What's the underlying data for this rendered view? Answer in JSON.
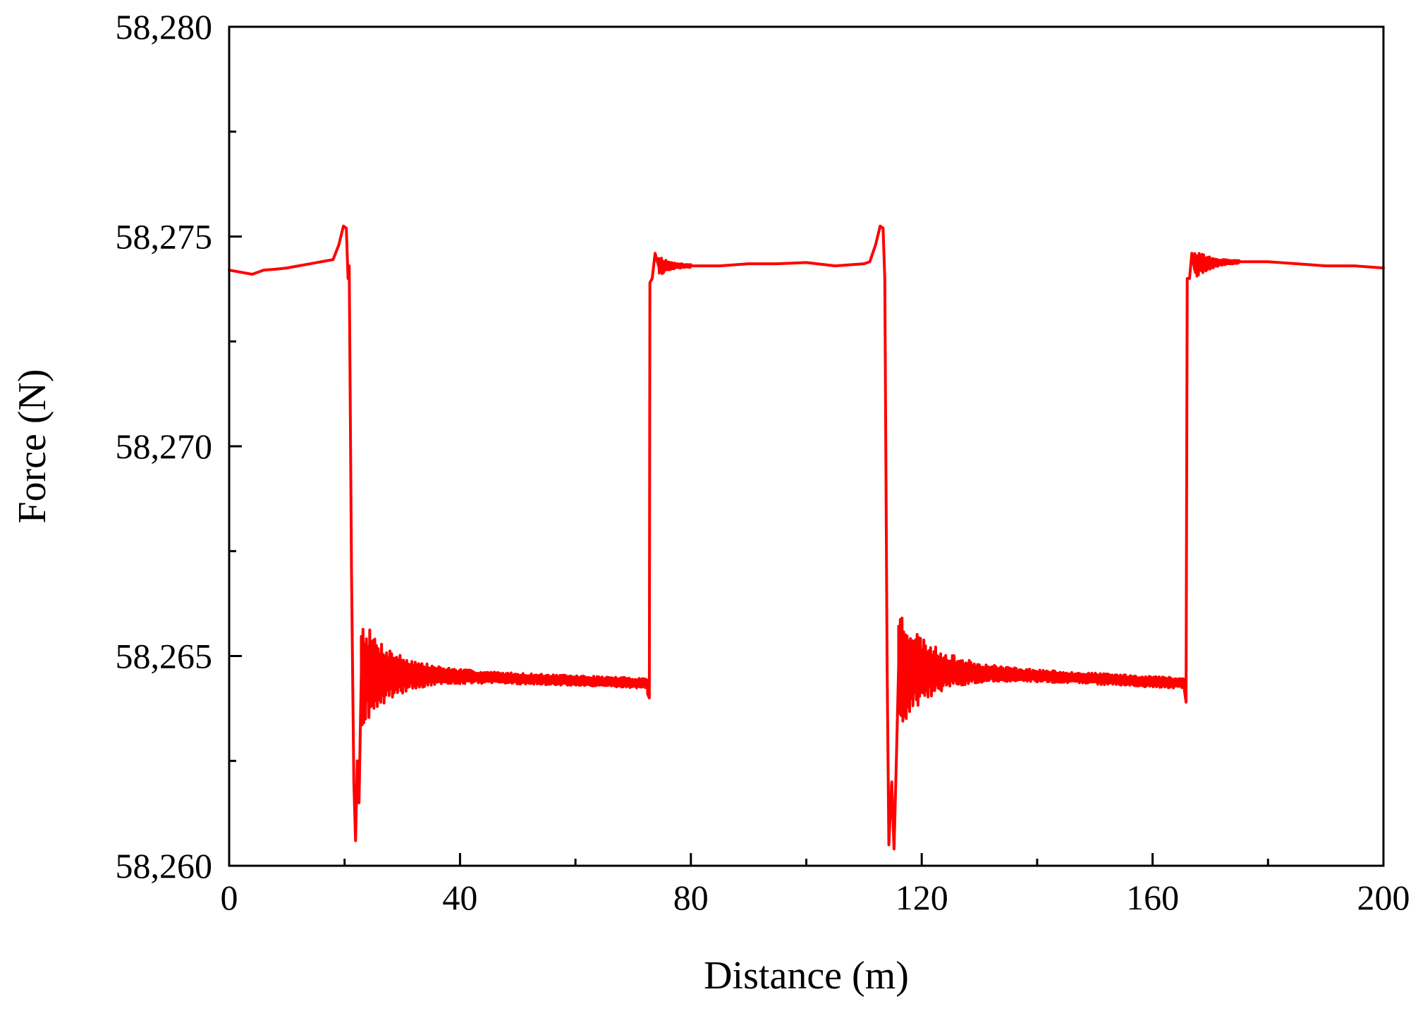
{
  "chart_data": {
    "type": "line",
    "title": "",
    "xlabel": "Distance (m)",
    "ylabel": "Force (N)",
    "xlim": [
      0,
      200
    ],
    "ylim": [
      58260,
      58280
    ],
    "x_ticks": [
      0,
      40,
      80,
      120,
      160,
      200
    ],
    "x_tick_labels": [
      "0",
      "40",
      "80",
      "120",
      "160",
      "200"
    ],
    "x_minor_step": 20,
    "y_ticks": [
      58260,
      58265,
      58270,
      58275,
      58280
    ],
    "y_tick_labels": [
      "58,260",
      "58,265",
      "58,270",
      "58,275",
      "58,280"
    ],
    "y_minor_step": 2.5,
    "grid": false,
    "legend": "none",
    "series": [
      {
        "color": "#ff0000",
        "segments": [
          {
            "kind": "points",
            "points": [
              [
                0,
                58274.2
              ],
              [
                2,
                58274.15
              ],
              [
                4,
                58274.1
              ],
              [
                6,
                58274.2
              ],
              [
                8,
                58274.22
              ],
              [
                10,
                58274.25
              ],
              [
                12,
                58274.3
              ],
              [
                14,
                58274.35
              ],
              [
                16,
                58274.4
              ],
              [
                18,
                58274.45
              ],
              [
                19,
                58274.8
              ],
              [
                19.8,
                58275.25
              ],
              [
                20.3,
                58275.2
              ],
              [
                20.6,
                58274.0
              ],
              [
                20.8,
                58274.3
              ],
              [
                21.2,
                58267.0
              ],
              [
                21.6,
                58262.0
              ],
              [
                21.9,
                58260.6
              ],
              [
                22.2,
                58262.5
              ],
              [
                22.5,
                58261.5
              ],
              [
                22.9,
                58264.6
              ]
            ]
          },
          {
            "kind": "oscillation",
            "x_start": 22.9,
            "x_end": 72.5,
            "base_start": 58264.6,
            "base_end": 58264.35,
            "amp0": 1.2,
            "decay": 9,
            "cycles": 170,
            "floor": 0.12,
            "seed": 7
          },
          {
            "kind": "points",
            "points": [
              [
                72.5,
                58264.1
              ],
              [
                72.8,
                58264.0
              ],
              [
                72.9,
                58273.9
              ],
              [
                73.3,
                58274.0
              ],
              [
                73.8,
                58274.6
              ],
              [
                74.4,
                58274.3
              ]
            ]
          },
          {
            "kind": "oscillation",
            "x_start": 74.4,
            "x_end": 80,
            "base_start": 58274.3,
            "base_end": 58274.3,
            "amp0": 0.25,
            "decay": 3,
            "cycles": 22,
            "floor": 0.02,
            "seed": 11
          },
          {
            "kind": "points",
            "points": [
              [
                80,
                58274.3
              ],
              [
                85,
                58274.3
              ],
              [
                90,
                58274.35
              ],
              [
                95,
                58274.35
              ],
              [
                100,
                58274.38
              ],
              [
                105,
                58274.3
              ],
              [
                110,
                58274.35
              ],
              [
                111,
                58274.4
              ],
              [
                112,
                58274.8
              ],
              [
                112.8,
                58275.25
              ],
              [
                113.3,
                58275.2
              ],
              [
                113.6,
                58274.0
              ],
              [
                114.0,
                58264.8
              ],
              [
                114.3,
                58260.5
              ],
              [
                114.8,
                58262.0
              ],
              [
                115.2,
                58260.4
              ],
              [
                115.6,
                58262.5
              ],
              [
                116.0,
                58264.8
              ]
            ]
          },
          {
            "kind": "oscillation",
            "x_start": 116.0,
            "x_end": 165.5,
            "base_start": 58264.7,
            "base_end": 58264.35,
            "amp0": 1.4,
            "decay": 9,
            "cycles": 170,
            "floor": 0.13,
            "seed": 23
          },
          {
            "kind": "points",
            "points": [
              [
                165.5,
                58264.2
              ],
              [
                165.8,
                58263.9
              ],
              [
                166.0,
                58274.0
              ],
              [
                166.4,
                58274.0
              ],
              [
                166.8,
                58274.6
              ],
              [
                167.3,
                58274.2
              ]
            ]
          },
          {
            "kind": "oscillation",
            "x_start": 167.3,
            "x_end": 175,
            "base_start": 58274.35,
            "base_end": 58274.4,
            "amp0": 0.35,
            "decay": 3,
            "cycles": 30,
            "floor": 0.02,
            "seed": 31
          },
          {
            "kind": "points",
            "points": [
              [
                175,
                58274.4
              ],
              [
                180,
                58274.4
              ],
              [
                185,
                58274.35
              ],
              [
                190,
                58274.3
              ],
              [
                195,
                58274.3
              ],
              [
                200,
                58274.25
              ]
            ]
          }
        ]
      }
    ]
  }
}
